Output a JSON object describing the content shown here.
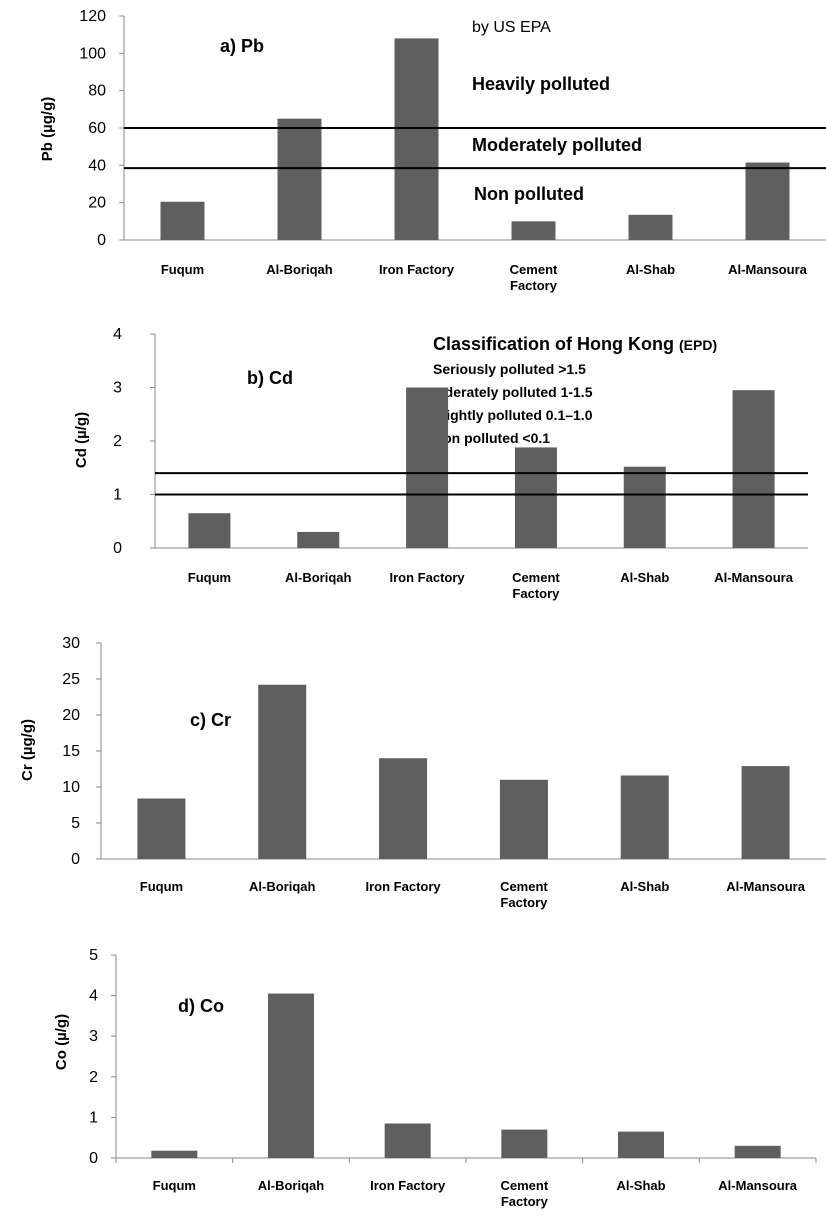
{
  "chart_data": [
    {
      "type": "bar",
      "panel_label": "a) Pb",
      "ylabel": "Pb (µg/g)",
      "categories": [
        "Fuqum",
        "Al-Boriqah",
        "Iron Factory",
        "Cement Factory",
        "Al-Shab",
        "Al-Mansoura"
      ],
      "values": [
        20.5,
        65,
        108,
        10,
        13.5,
        41.5
      ],
      "ylim": [
        0,
        120
      ],
      "yticks": [
        "0",
        "20",
        "40",
        "60",
        "80",
        "100",
        "120"
      ],
      "bar_color": "#5f5f5f",
      "reference_lines": [
        60,
        38.5
      ],
      "annotations": [
        "by US EPA",
        "Heavily polluted",
        "Moderately polluted",
        "Non polluted"
      ]
    },
    {
      "type": "bar",
      "panel_label": "b) Cd",
      "ylabel": "Cd (µ/g)",
      "categories": [
        "Fuqum",
        "Al-Boriqah",
        "Iron Factory",
        "Cement Factory",
        "Al-Shab",
        "Al-Mansoura"
      ],
      "values": [
        0.65,
        0.3,
        3.0,
        1.88,
        1.52,
        2.95
      ],
      "ylim": [
        0,
        4
      ],
      "yticks": [
        "0",
        "1",
        "2",
        "3",
        "4"
      ],
      "bar_color": "#5f5f5f",
      "reference_lines": [
        1.4,
        1.0
      ],
      "annotations": [
        "Classification of Hong Kong",
        "(EPD)",
        "Seriously polluted  >1.5",
        "Mderately polluted 1-1.5",
        "Slightly polluted 0.1–1.0",
        "Non polluted <0.1"
      ]
    },
    {
      "type": "bar",
      "panel_label": "c) Cr",
      "ylabel": "Cr (µg/g)",
      "categories": [
        "Fuqum",
        "Al-Boriqah",
        "Iron Factory",
        "Cement Factory",
        "Al-Shab",
        "Al-Mansoura"
      ],
      "values": [
        8.4,
        24.2,
        14.0,
        11.0,
        11.6,
        12.9
      ],
      "ylim": [
        0,
        30
      ],
      "yticks": [
        "0",
        "5",
        "10",
        "15",
        "20",
        "25",
        "30"
      ],
      "bar_color": "#5f5f5f",
      "reference_lines": [],
      "annotations": []
    },
    {
      "type": "bar",
      "panel_label": "d) Co",
      "ylabel": "Co (µ/g)",
      "categories": [
        "Fuqum",
        "Al-Boriqah",
        "Iron Factory",
        "Cement Factory",
        "Al-Shab",
        "Al-Mansoura"
      ],
      "values": [
        0.18,
        4.05,
        0.85,
        0.7,
        0.65,
        0.3
      ],
      "ylim": [
        0,
        5
      ],
      "yticks": [
        "0",
        "1",
        "2",
        "3",
        "4",
        "5"
      ],
      "bar_color": "#5f5f5f",
      "reference_lines": [],
      "annotations": []
    }
  ]
}
